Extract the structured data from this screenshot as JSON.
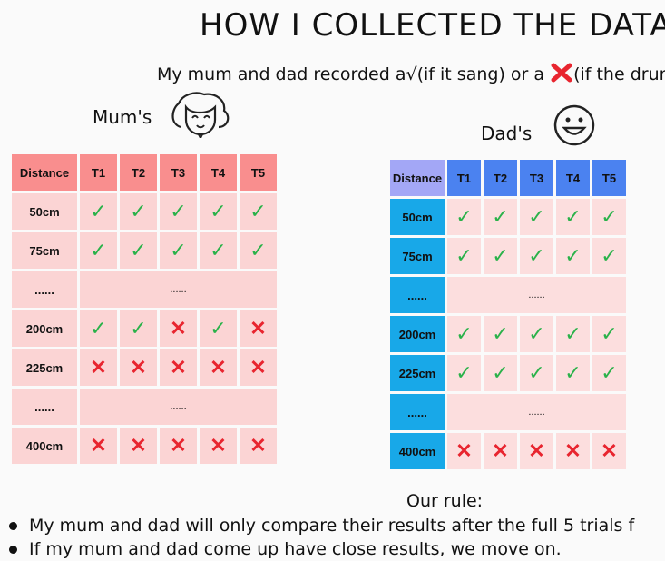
{
  "title": "HOW I COLLECTED THE DATA(",
  "subtitle": {
    "before": "My mum and dad recorded a",
    "tick_symbol": "√",
    "middle": "(if it sang) or a",
    "cross_symbol": "✕",
    "after": "(if the drum"
  },
  "mum": {
    "label": "Mum's",
    "face_icon": "girl-face-icon",
    "headers": [
      "Distance",
      "T1",
      "T2",
      "T3",
      "T4",
      "T5"
    ],
    "rows": [
      {
        "distance": "50cm",
        "results": [
          "tick",
          "tick",
          "tick",
          "tick",
          "tick"
        ]
      },
      {
        "distance": "75cm",
        "results": [
          "tick",
          "tick",
          "tick",
          "tick",
          "tick"
        ]
      },
      {
        "distance": "......",
        "gap": "......"
      },
      {
        "distance": "200cm",
        "results": [
          "tick",
          "tick",
          "cross",
          "tick",
          "cross"
        ]
      },
      {
        "distance": "225cm",
        "results": [
          "cross",
          "cross",
          "cross",
          "cross",
          "cross"
        ]
      },
      {
        "distance": "......",
        "gap": "......"
      },
      {
        "distance": "400cm",
        "results": [
          "cross",
          "cross",
          "cross",
          "cross",
          "cross"
        ]
      }
    ]
  },
  "dad": {
    "label": "Dad's",
    "face_icon": "smiley-face-icon",
    "headers": [
      "Distance",
      "T1",
      "T2",
      "T3",
      "T4",
      "T5"
    ],
    "rows": [
      {
        "distance": "50cm",
        "results": [
          "tick",
          "tick",
          "tick",
          "tick",
          "tick"
        ]
      },
      {
        "distance": "75cm",
        "results": [
          "tick",
          "tick",
          "tick",
          "tick",
          "tick"
        ]
      },
      {
        "distance": "......",
        "gap": "......"
      },
      {
        "distance": "200cm",
        "results": [
          "tick",
          "tick",
          "tick",
          "tick",
          "tick"
        ]
      },
      {
        "distance": "225cm",
        "results": [
          "tick",
          "tick",
          "tick",
          "tick",
          "tick"
        ]
      },
      {
        "distance": "......",
        "gap": "......"
      },
      {
        "distance": "400cm",
        "results": [
          "cross",
          "cross",
          "cross",
          "cross",
          "cross"
        ]
      }
    ]
  },
  "symbols": {
    "tick": "✓",
    "cross": "✕"
  },
  "colors": {
    "mum_header": "#f98e8e",
    "mum_cell": "#fbd4d4",
    "dad_header": "#4b82f0",
    "dad_distance": "#18a8e8",
    "dad_cell": "#fcdede",
    "tick": "#2ab24a",
    "cross": "#e8252f"
  },
  "rule": {
    "heading": "Our rule:",
    "bullets": [
      "My mum and dad will only compare their results after the full 5 trials f",
      "If my mum and dad come up have close results, we move on."
    ]
  }
}
